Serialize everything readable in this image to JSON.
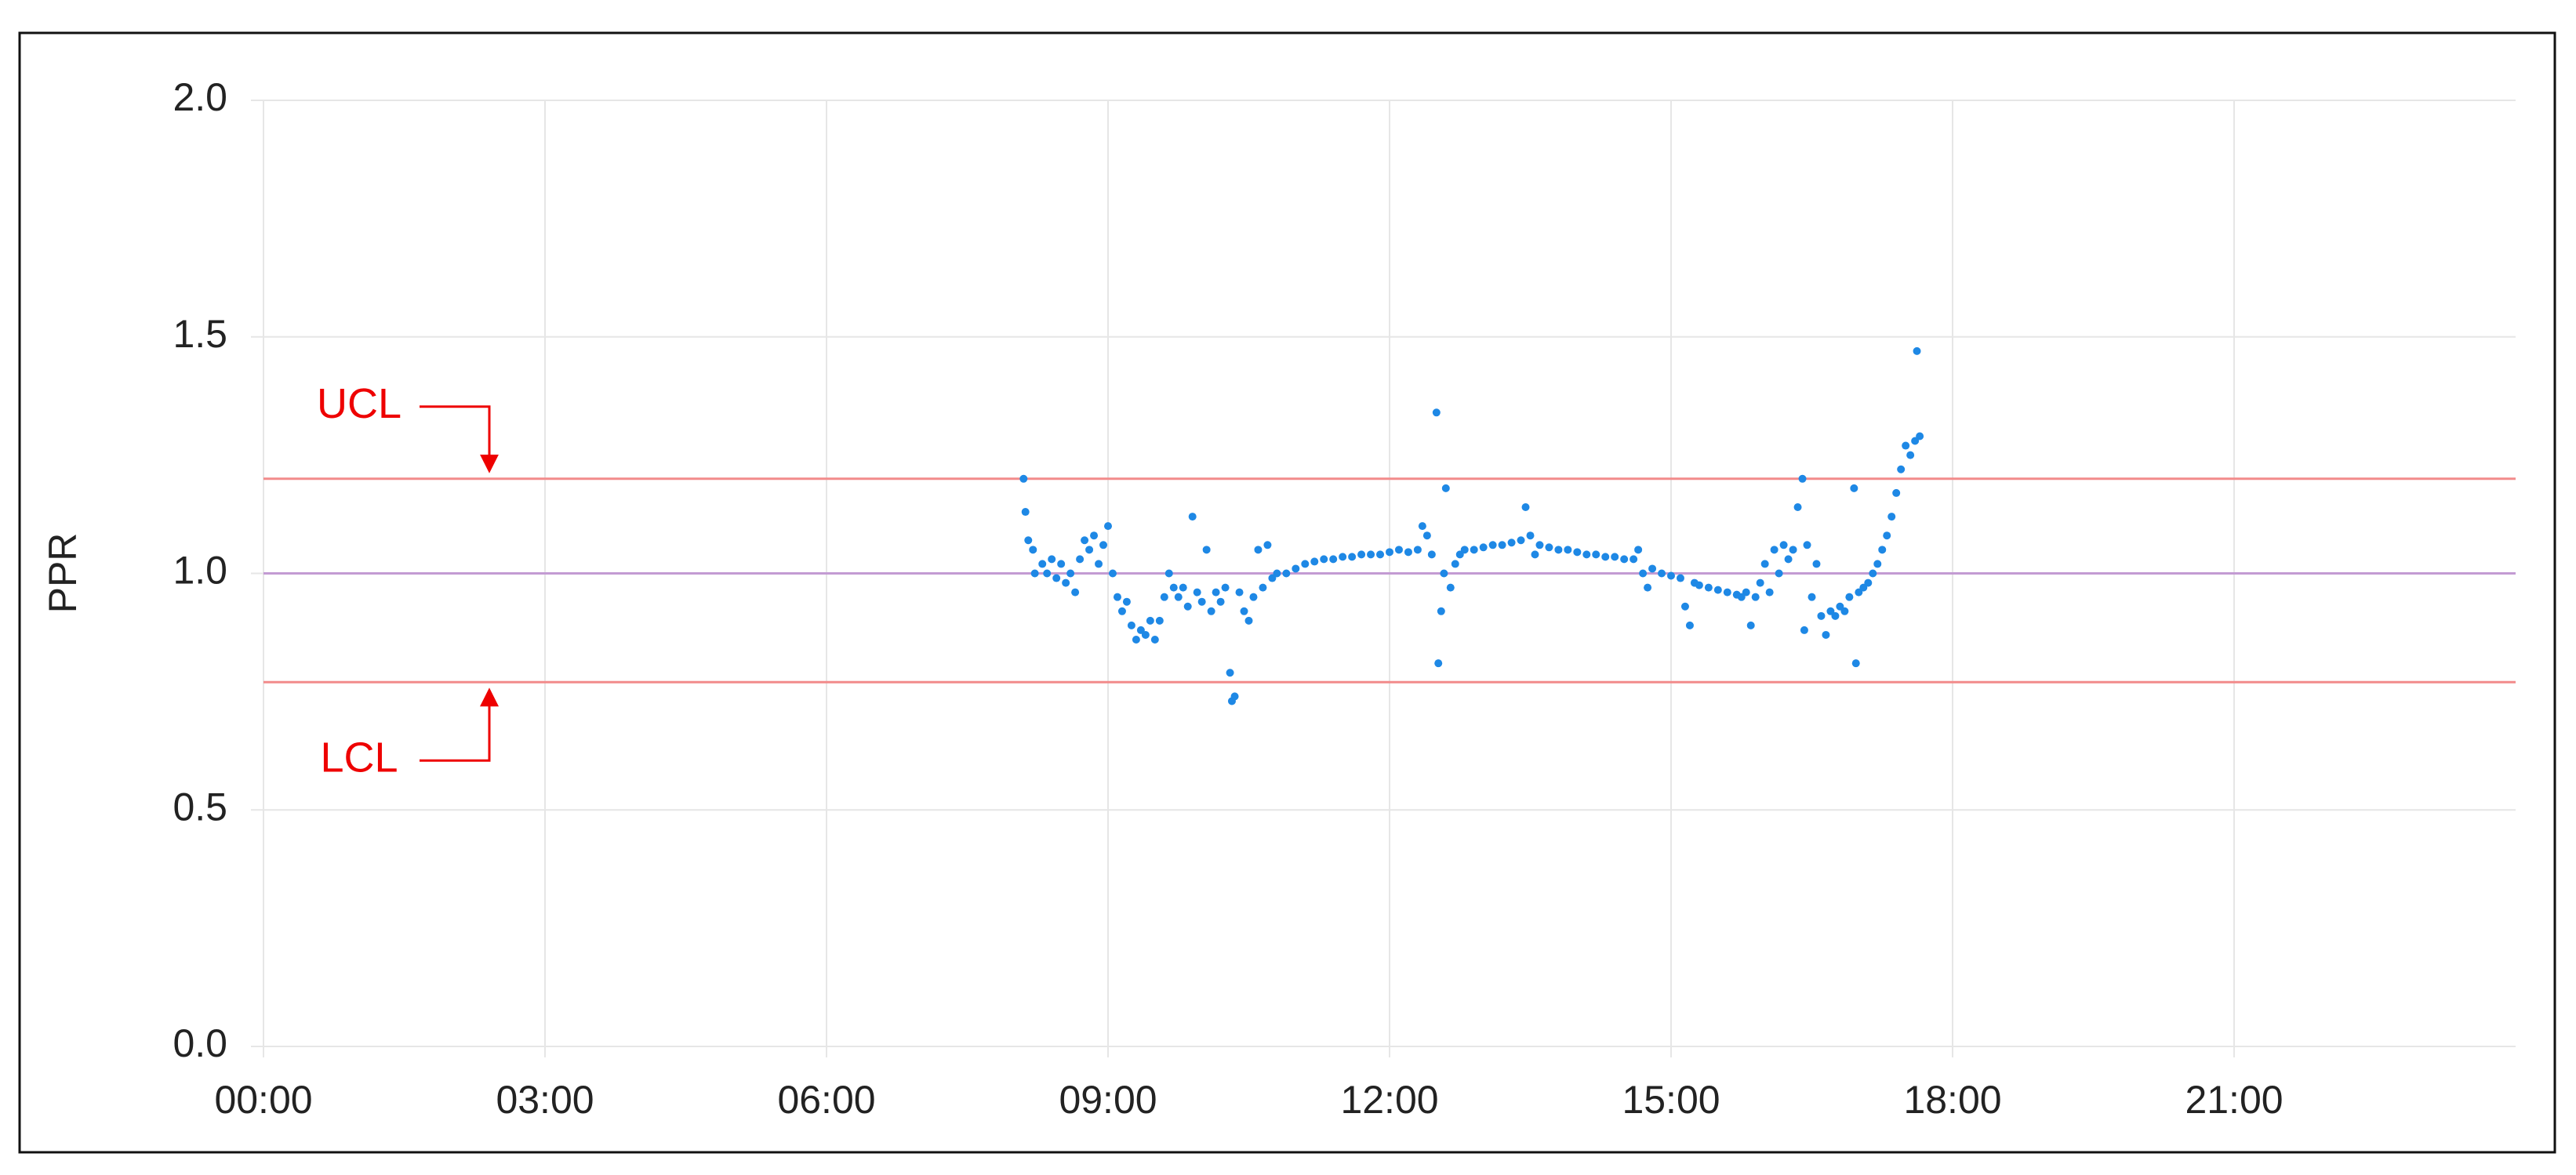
{
  "chart_data": {
    "type": "scatter",
    "y_label": "PPR",
    "color": "#1e88e5",
    "grid": true,
    "xlim": [
      0,
      24
    ],
    "ylim": [
      0,
      2
    ],
    "xticks": [
      {
        "value": 0,
        "label": "00:00"
      },
      {
        "value": 3,
        "label": "03:00"
      },
      {
        "value": 6,
        "label": "06:00"
      },
      {
        "value": 9,
        "label": "09:00"
      },
      {
        "value": 12,
        "label": "12:00"
      },
      {
        "value": 15,
        "label": "15:00"
      },
      {
        "value": 18,
        "label": "18:00"
      },
      {
        "value": 21,
        "label": "21:00"
      }
    ],
    "yticks": [
      {
        "value": 0,
        "label": "0.0"
      },
      {
        "value": 0.5,
        "label": "0.5"
      },
      {
        "value": 1,
        "label": "1.0"
      },
      {
        "value": 1.5,
        "label": "1.5"
      },
      {
        "value": 2,
        "label": "2.0"
      }
    ],
    "lines": [
      {
        "label": "UCL",
        "value": 1.2,
        "color": "#f28b8b"
      },
      {
        "value": 1.0,
        "color": "#c39bd3"
      },
      {
        "label": "LCL",
        "value": 0.77,
        "color": "#f28b8b"
      }
    ],
    "x": [
      8.1,
      8.12,
      8.15,
      8.2,
      8.22,
      8.3,
      8.35,
      8.4,
      8.45,
      8.5,
      8.55,
      8.6,
      8.65,
      8.7,
      8.75,
      8.8,
      8.85,
      8.9,
      8.95,
      9.0,
      9.05,
      9.1,
      9.15,
      9.2,
      9.25,
      9.3,
      9.35,
      9.4,
      9.45,
      9.5,
      9.55,
      9.6,
      9.65,
      9.7,
      9.75,
      9.8,
      9.85,
      9.9,
      9.95,
      10.0,
      10.05,
      10.1,
      10.15,
      10.2,
      10.25,
      10.3,
      10.32,
      10.35,
      10.4,
      10.45,
      10.5,
      10.55,
      10.6,
      10.65,
      10.7,
      10.75,
      10.8,
      10.9,
      11.0,
      11.1,
      11.2,
      11.3,
      11.4,
      11.5,
      11.6,
      11.7,
      11.8,
      11.9,
      12.0,
      12.1,
      12.2,
      12.3,
      12.35,
      12.4,
      12.45,
      12.5,
      12.52,
      12.55,
      12.58,
      12.6,
      12.65,
      12.7,
      12.75,
      12.8,
      12.9,
      13.0,
      13.1,
      13.2,
      13.3,
      13.4,
      13.45,
      13.5,
      13.55,
      13.6,
      13.7,
      13.8,
      13.9,
      14.0,
      14.1,
      14.2,
      14.3,
      14.4,
      14.5,
      14.6,
      14.65,
      14.7,
      14.75,
      14.8,
      14.9,
      15.0,
      15.1,
      15.15,
      15.2,
      15.25,
      15.3,
      15.4,
      15.5,
      15.6,
      15.7,
      15.75,
      15.8,
      15.85,
      15.9,
      15.95,
      16.0,
      16.05,
      16.1,
      16.15,
      16.2,
      16.25,
      16.3,
      16.35,
      16.4,
      16.42,
      16.45,
      16.5,
      16.55,
      16.6,
      16.65,
      16.7,
      16.75,
      16.8,
      16.85,
      16.9,
      16.95,
      16.97,
      17.0,
      17.05,
      17.1,
      17.15,
      17.2,
      17.25,
      17.3,
      17.35,
      17.4,
      17.45,
      17.5,
      17.55,
      17.6,
      17.62,
      17.65
    ],
    "values": [
      1.2,
      1.13,
      1.07,
      1.05,
      1.0,
      1.02,
      1.0,
      1.03,
      0.99,
      1.02,
      0.98,
      1.0,
      0.96,
      1.03,
      1.07,
      1.05,
      1.08,
      1.02,
      1.06,
      1.1,
      1.0,
      0.95,
      0.92,
      0.94,
      0.89,
      0.86,
      0.88,
      0.87,
      0.9,
      0.86,
      0.9,
      0.95,
      1.0,
      0.97,
      0.95,
      0.97,
      0.93,
      1.12,
      0.96,
      0.94,
      1.05,
      0.92,
      0.96,
      0.94,
      0.97,
      0.79,
      0.73,
      0.74,
      0.96,
      0.92,
      0.9,
      0.95,
      1.05,
      0.97,
      1.06,
      0.99,
      1.0,
      1.0,
      1.01,
      1.02,
      1.025,
      1.03,
      1.03,
      1.035,
      1.035,
      1.04,
      1.04,
      1.04,
      1.045,
      1.05,
      1.045,
      1.05,
      1.1,
      1.08,
      1.04,
      1.34,
      0.81,
      0.92,
      1.0,
      1.18,
      0.97,
      1.02,
      1.04,
      1.05,
      1.05,
      1.055,
      1.06,
      1.06,
      1.065,
      1.07,
      1.14,
      1.08,
      1.04,
      1.06,
      1.055,
      1.05,
      1.05,
      1.045,
      1.04,
      1.04,
      1.035,
      1.035,
      1.03,
      1.03,
      1.05,
      1.0,
      0.97,
      1.01,
      1.0,
      0.995,
      0.99,
      0.93,
      0.89,
      0.98,
      0.975,
      0.97,
      0.965,
      0.96,
      0.955,
      0.95,
      0.96,
      0.89,
      0.95,
      0.98,
      1.02,
      0.96,
      1.05,
      1.0,
      1.06,
      1.03,
      1.05,
      1.14,
      1.2,
      0.88,
      1.06,
      0.95,
      1.02,
      0.91,
      0.87,
      0.92,
      0.91,
      0.93,
      0.92,
      0.95,
      1.18,
      0.81,
      0.96,
      0.97,
      0.98,
      1.0,
      1.02,
      1.05,
      1.08,
      1.12,
      1.17,
      1.22,
      1.27,
      1.25,
      1.28,
      1.47,
      1.29
    ]
  }
}
